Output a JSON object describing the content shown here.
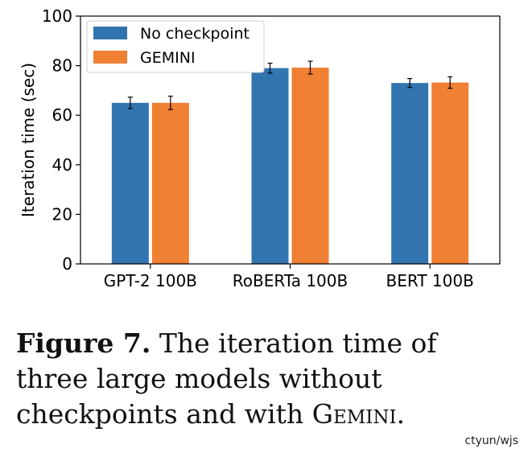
{
  "chart_data": {
    "type": "bar",
    "categories": [
      "GPT-2 100B",
      "RoBERTa 100B",
      "BERT 100B"
    ],
    "series": [
      {
        "name": "No checkpoint",
        "color": "#3274b0",
        "values": [
          65,
          79,
          73
        ],
        "errors": [
          2.3,
          2.0,
          1.8
        ]
      },
      {
        "name": "GEMINI",
        "color": "#ef8034",
        "values": [
          65,
          79.2,
          73.2
        ],
        "errors": [
          2.7,
          2.6,
          2.3
        ]
      }
    ],
    "ylabel": "Iteration time (sec)",
    "xlabel": "",
    "ylim": [
      0,
      100
    ],
    "yticks": [
      "0",
      "20",
      "40",
      "60",
      "80",
      "100"
    ],
    "legend_position": "top-left",
    "grid": false
  },
  "caption": {
    "figure_label": "Figure 7.",
    "text_before": "The iteration time of three large models without checkpoints and with",
    "system_name": "Gemini",
    "text_after": "."
  },
  "watermark": "ctyun/wjs"
}
